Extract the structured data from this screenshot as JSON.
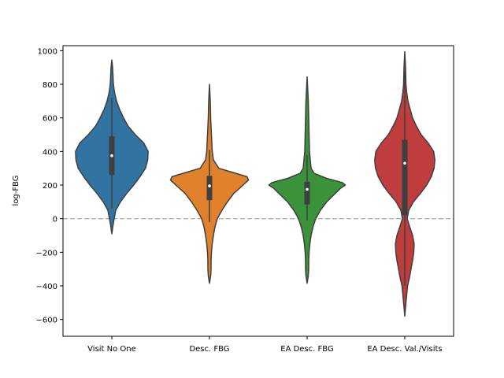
{
  "chart_data": {
    "type": "violin",
    "title": "",
    "xlabel": "",
    "ylabel": "log-FBG",
    "ylim": [
      -700,
      1030
    ],
    "yticks": [
      -600,
      -400,
      -200,
      0,
      200,
      400,
      600,
      800,
      1000
    ],
    "reference_line": {
      "y": 0,
      "style": "dashed",
      "color": "#b0b0b0"
    },
    "categories": [
      "Visit No One",
      "Desc. FBG",
      "EA Desc. FBG",
      "EA Desc. Val./Visits"
    ],
    "series": [
      {
        "name": "Visit No One",
        "color": "#3274a1",
        "min": -90,
        "max": 945,
        "q1": 260,
        "median": 375,
        "q3": 490,
        "whisker_low": 60,
        "whisker_high": 720,
        "profile": [
          [
            -90,
            0.0
          ],
          [
            -40,
            0.03
          ],
          [
            0,
            0.06
          ],
          [
            50,
            0.1
          ],
          [
            100,
            0.22
          ],
          [
            150,
            0.38
          ],
          [
            200,
            0.56
          ],
          [
            250,
            0.72
          ],
          [
            300,
            0.86
          ],
          [
            350,
            0.92
          ],
          [
            400,
            0.93
          ],
          [
            450,
            0.82
          ],
          [
            500,
            0.6
          ],
          [
            550,
            0.42
          ],
          [
            600,
            0.3
          ],
          [
            650,
            0.2
          ],
          [
            700,
            0.12
          ],
          [
            750,
            0.07
          ],
          [
            800,
            0.04
          ],
          [
            850,
            0.03
          ],
          [
            900,
            0.02
          ],
          [
            945,
            0.0
          ]
        ]
      },
      {
        "name": "Desc. FBG",
        "color": "#e1812c",
        "min": -385,
        "max": 800,
        "q1": 110,
        "median": 195,
        "q3": 255,
        "whisker_low": -20,
        "whisker_high": 410,
        "profile": [
          [
            -385,
            0.0
          ],
          [
            -340,
            0.03
          ],
          [
            -300,
            0.04
          ],
          [
            -250,
            0.04
          ],
          [
            -200,
            0.05
          ],
          [
            -150,
            0.07
          ],
          [
            -100,
            0.1
          ],
          [
            -50,
            0.14
          ],
          [
            0,
            0.2
          ],
          [
            50,
            0.32
          ],
          [
            100,
            0.46
          ],
          [
            150,
            0.62
          ],
          [
            200,
            0.86
          ],
          [
            230,
            1.0
          ],
          [
            250,
            0.96
          ],
          [
            275,
            0.6
          ],
          [
            300,
            0.24
          ],
          [
            350,
            0.1
          ],
          [
            400,
            0.07
          ],
          [
            450,
            0.06
          ],
          [
            500,
            0.05
          ],
          [
            550,
            0.04
          ],
          [
            600,
            0.03
          ],
          [
            700,
            0.02
          ],
          [
            800,
            0.0
          ]
        ]
      },
      {
        "name": "EA Desc. FBG",
        "color": "#3a923a",
        "min": -385,
        "max": 845,
        "q1": 85,
        "median": 175,
        "q3": 220,
        "whisker_low": -10,
        "whisker_high": 380,
        "profile": [
          [
            -385,
            0.0
          ],
          [
            -340,
            0.03
          ],
          [
            -300,
            0.04
          ],
          [
            -250,
            0.04
          ],
          [
            -200,
            0.05
          ],
          [
            -150,
            0.07
          ],
          [
            -100,
            0.1
          ],
          [
            -50,
            0.15
          ],
          [
            0,
            0.22
          ],
          [
            50,
            0.34
          ],
          [
            100,
            0.5
          ],
          [
            150,
            0.72
          ],
          [
            180,
            0.85
          ],
          [
            200,
            0.98
          ],
          [
            215,
            0.9
          ],
          [
            240,
            0.5
          ],
          [
            270,
            0.18
          ],
          [
            300,
            0.1
          ],
          [
            400,
            0.06
          ],
          [
            500,
            0.05
          ],
          [
            600,
            0.04
          ],
          [
            700,
            0.03
          ],
          [
            845,
            0.0
          ]
        ]
      },
      {
        "name": "EA Desc. Val./Visits",
        "color": "#c03d3e",
        "min": -580,
        "max": 995,
        "q1": 20,
        "median": 330,
        "q3": 470,
        "whisker_low": -400,
        "whisker_high": 880,
        "profile": [
          [
            -580,
            0.0
          ],
          [
            -500,
            0.03
          ],
          [
            -400,
            0.07
          ],
          [
            -350,
            0.12
          ],
          [
            -300,
            0.16
          ],
          [
            -250,
            0.2
          ],
          [
            -200,
            0.23
          ],
          [
            -150,
            0.24
          ],
          [
            -100,
            0.2
          ],
          [
            -50,
            0.13
          ],
          [
            0,
            0.06
          ],
          [
            50,
            0.1
          ],
          [
            100,
            0.22
          ],
          [
            150,
            0.4
          ],
          [
            200,
            0.56
          ],
          [
            250,
            0.68
          ],
          [
            300,
            0.75
          ],
          [
            350,
            0.77
          ],
          [
            400,
            0.74
          ],
          [
            450,
            0.6
          ],
          [
            500,
            0.42
          ],
          [
            550,
            0.3
          ],
          [
            600,
            0.2
          ],
          [
            650,
            0.14
          ],
          [
            700,
            0.08
          ],
          [
            750,
            0.05
          ],
          [
            800,
            0.03
          ],
          [
            900,
            0.02
          ],
          [
            995,
            0.0
          ]
        ]
      }
    ]
  }
}
